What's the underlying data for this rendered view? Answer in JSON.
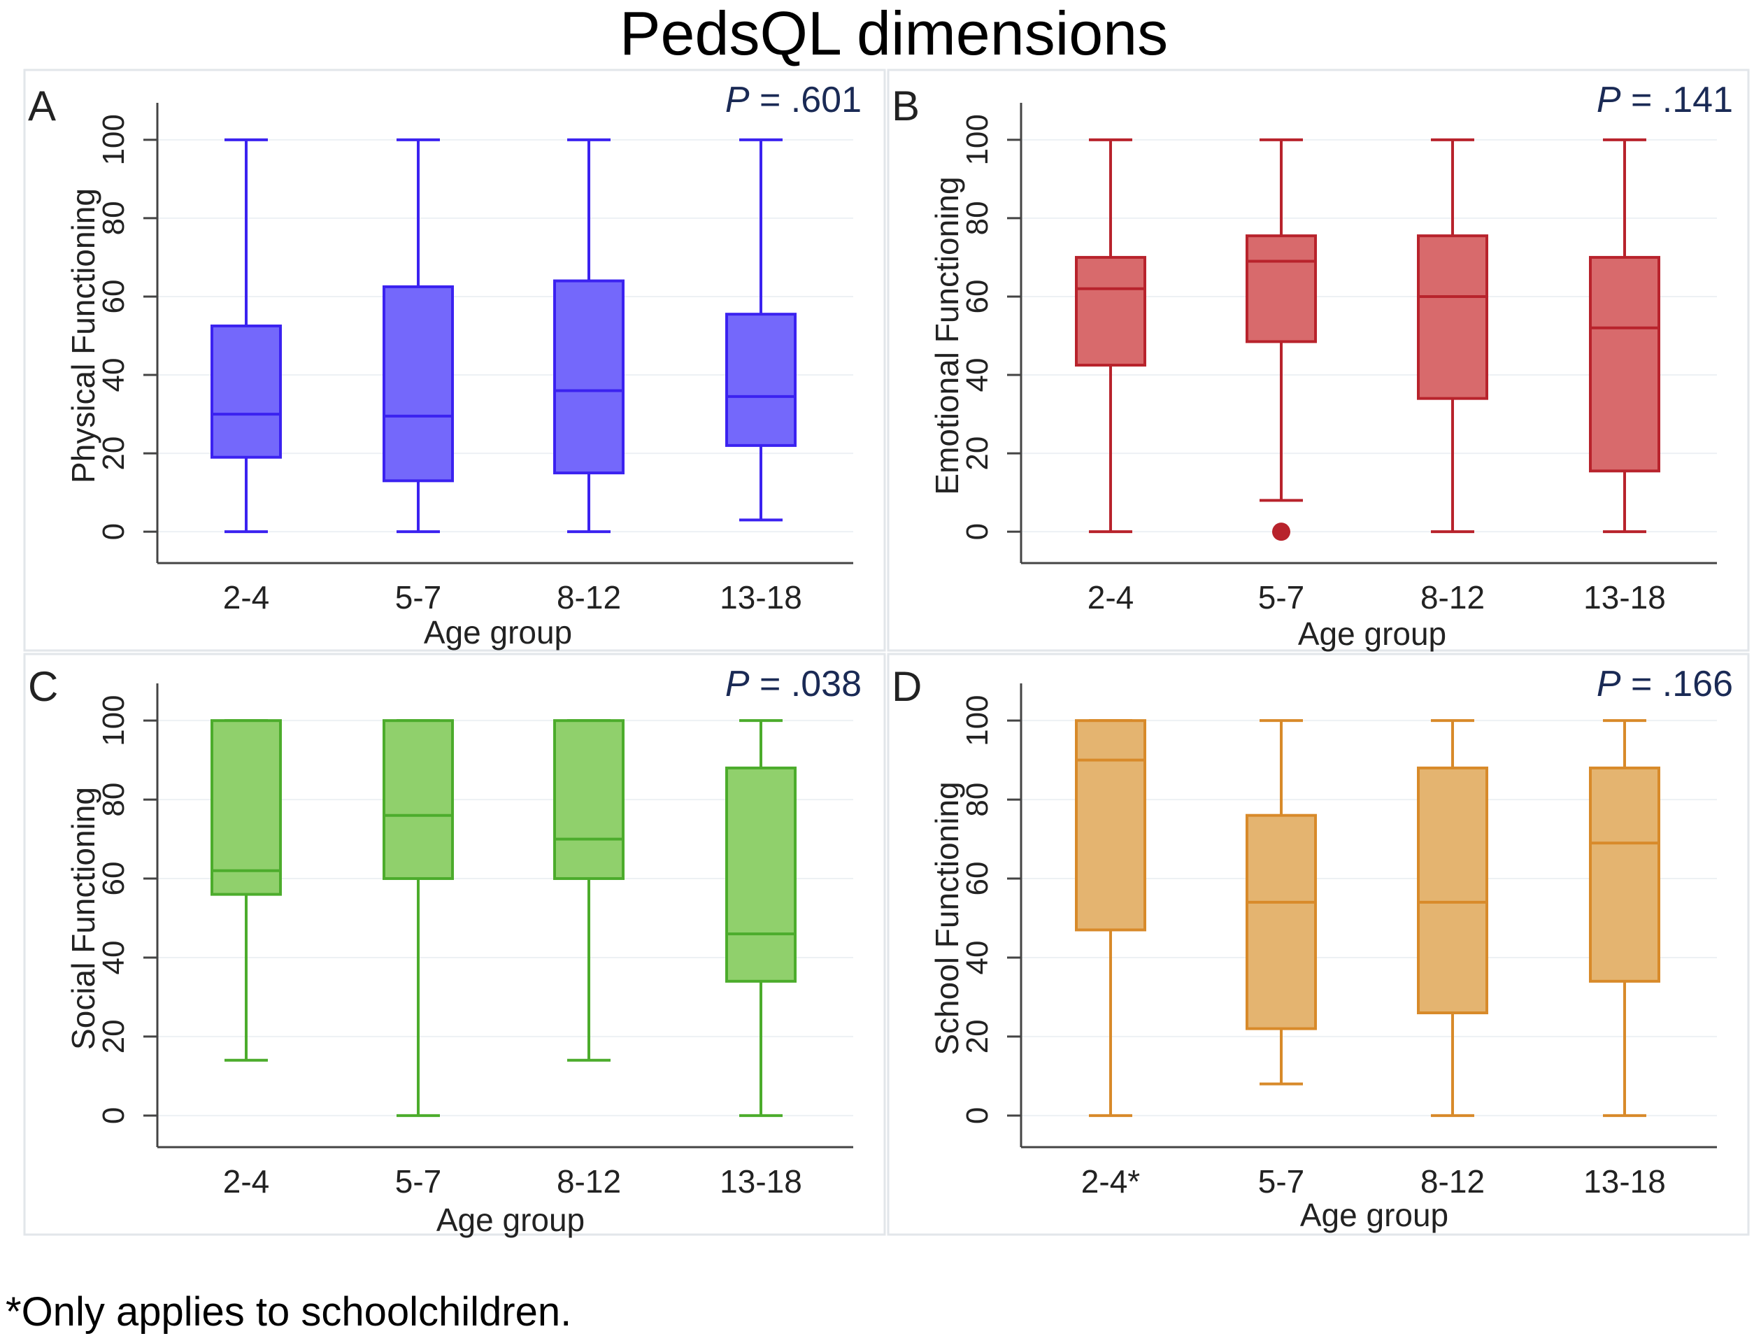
{
  "title": "PedsQL dimensions",
  "footnote": "*Only applies to schoolchildren.",
  "chart_data": [
    {
      "type": "box",
      "panel": "A",
      "p_value": "P = .601",
      "xlabel": "Age group",
      "ylabel": "Physical Functioning",
      "ylim": [
        -8,
        108
      ],
      "yticks": [
        "0",
        "20",
        "40",
        "60",
        "80",
        "100"
      ],
      "color": "#3b22f0",
      "fill": "#7468fb",
      "categories": [
        "2-4",
        "5-7",
        "8-12",
        "13-18"
      ],
      "boxes": [
        {
          "min": 0,
          "q1": 19,
          "median": 30,
          "q3": 52.5,
          "max": 100,
          "outliers": []
        },
        {
          "min": 0,
          "q1": 13,
          "median": 29.5,
          "q3": 62.5,
          "max": 100,
          "outliers": []
        },
        {
          "min": 0,
          "q1": 15,
          "median": 36,
          "q3": 64,
          "max": 100,
          "outliers": []
        },
        {
          "min": 3,
          "q1": 22,
          "median": 34.5,
          "q3": 55.5,
          "max": 100,
          "outliers": []
        }
      ]
    },
    {
      "type": "box",
      "panel": "B",
      "p_value": "P = .141",
      "xlabel": "Age group",
      "ylabel": "Emotional Functioning",
      "ylim": [
        -8,
        108
      ],
      "yticks": [
        "0",
        "20",
        "40",
        "60",
        "80",
        "100"
      ],
      "color": "#b8232c",
      "fill": "#d86a6c",
      "categories": [
        "2-4",
        "5-7",
        "8-12",
        "13-18"
      ],
      "boxes": [
        {
          "min": 0,
          "q1": 42.5,
          "median": 62,
          "q3": 70,
          "max": 100,
          "outliers": []
        },
        {
          "min": 8,
          "q1": 48.5,
          "median": 69,
          "q3": 75.5,
          "max": 100,
          "outliers": [
            0
          ]
        },
        {
          "min": 0,
          "q1": 34,
          "median": 60,
          "q3": 75.5,
          "max": 100,
          "outliers": []
        },
        {
          "min": 0,
          "q1": 15.5,
          "median": 52,
          "q3": 70,
          "max": 100,
          "outliers": []
        }
      ]
    },
    {
      "type": "box",
      "panel": "C",
      "p_value": "P = .038",
      "xlabel": "Age group",
      "ylabel": "Social Functioning",
      "ylim": [
        -8,
        108
      ],
      "yticks": [
        "0",
        "20",
        "40",
        "60",
        "80",
        "100"
      ],
      "color": "#4cac2c",
      "fill": "#90d06c",
      "categories": [
        "2-4",
        "5-7",
        "8-12",
        "13-18"
      ],
      "boxes": [
        {
          "min": 14,
          "q1": 56,
          "median": 62,
          "q3": 100,
          "max": 100,
          "outliers": []
        },
        {
          "min": 0,
          "q1": 60,
          "median": 76,
          "q3": 100,
          "max": 100,
          "outliers": []
        },
        {
          "min": 14,
          "q1": 60,
          "median": 70,
          "q3": 100,
          "max": 100,
          "outliers": []
        },
        {
          "min": 0,
          "q1": 34,
          "median": 46,
          "q3": 88,
          "max": 100,
          "outliers": []
        }
      ]
    },
    {
      "type": "box",
      "panel": "D",
      "p_value": "P = .166",
      "xlabel": "Age group",
      "ylabel": "School Functioning",
      "ylim": [
        -8,
        108
      ],
      "yticks": [
        "0",
        "20",
        "40",
        "60",
        "80",
        "100"
      ],
      "color": "#d88a2a",
      "fill": "#e4b470",
      "categories": [
        "2-4*",
        "5-7",
        "8-12",
        "13-18"
      ],
      "boxes": [
        {
          "min": 0,
          "q1": 47,
          "median": 90,
          "q3": 100,
          "max": 100,
          "outliers": []
        },
        {
          "min": 8,
          "q1": 22,
          "median": 54,
          "q3": 76,
          "max": 100,
          "outliers": []
        },
        {
          "min": 0,
          "q1": 26,
          "median": 54,
          "q3": 88,
          "max": 100,
          "outliers": []
        },
        {
          "min": 0,
          "q1": 34,
          "median": 69,
          "q3": 88,
          "max": 100,
          "outliers": []
        }
      ]
    }
  ]
}
